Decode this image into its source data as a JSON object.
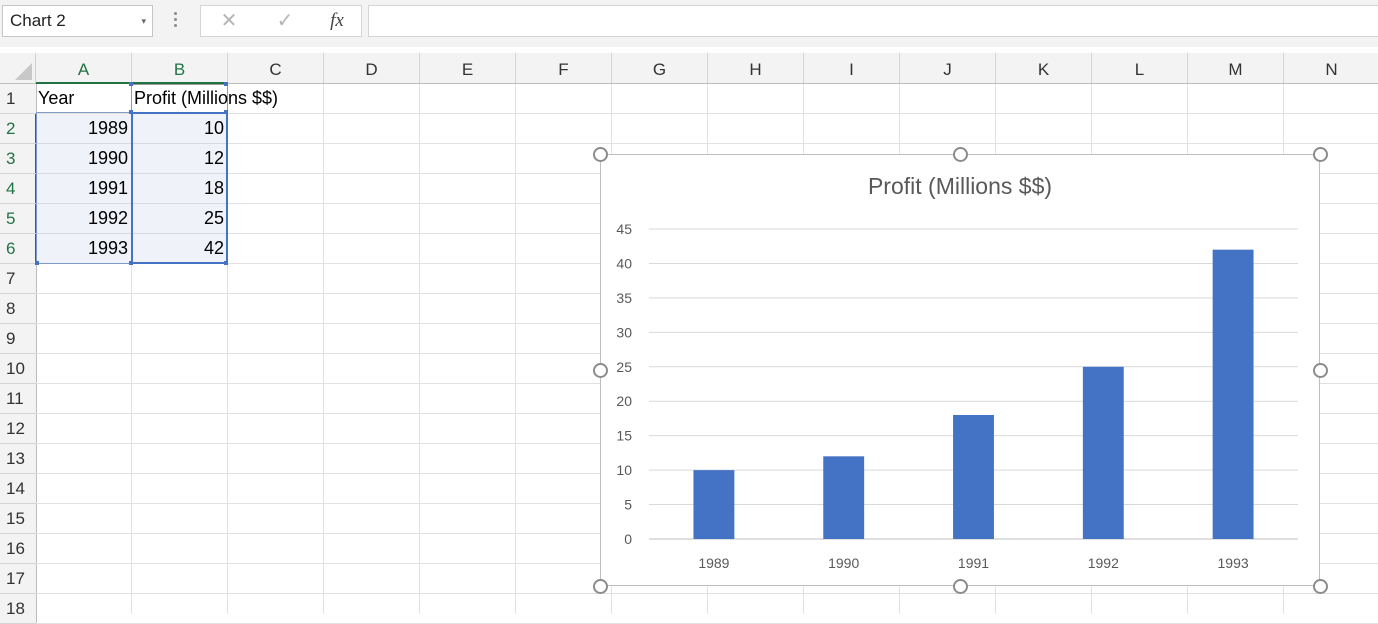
{
  "name_box": {
    "value": "Chart 2"
  },
  "formula_bar": {
    "cancel_icon": "close-icon",
    "enter_icon": "checkmark-icon",
    "fx_label": "fx",
    "formula_value": ""
  },
  "columns": [
    "A",
    "B",
    "C",
    "D",
    "E",
    "F",
    "G",
    "H",
    "I",
    "J",
    "K",
    "L",
    "M",
    "N"
  ],
  "rows": [
    "1",
    "2",
    "3",
    "4",
    "5",
    "6",
    "7",
    "8",
    "9",
    "10",
    "11",
    "12",
    "13",
    "14",
    "15",
    "16",
    "17",
    "18"
  ],
  "sheet": {
    "header": {
      "a1": "Year",
      "b1": "Profit (Millions $$)"
    },
    "data": [
      {
        "year": "1989",
        "profit": "10"
      },
      {
        "year": "1990",
        "profit": "12"
      },
      {
        "year": "1991",
        "profit": "18"
      },
      {
        "year": "1992",
        "profit": "25"
      },
      {
        "year": "1993",
        "profit": "42"
      }
    ]
  },
  "colors": {
    "bar": "#4472c4",
    "accent": "#217346",
    "range_border": "#4472c4"
  },
  "chart_data": {
    "type": "bar",
    "title": "Profit (Millions $$)",
    "categories": [
      "1989",
      "1990",
      "1991",
      "1992",
      "1993"
    ],
    "values": [
      10,
      12,
      18,
      25,
      42
    ],
    "xlabel": "",
    "ylabel": "",
    "ylim": [
      0,
      45
    ],
    "yticks": [
      0,
      5,
      10,
      15,
      20,
      25,
      30,
      35,
      40,
      45
    ],
    "grid": true,
    "legend": "none"
  }
}
